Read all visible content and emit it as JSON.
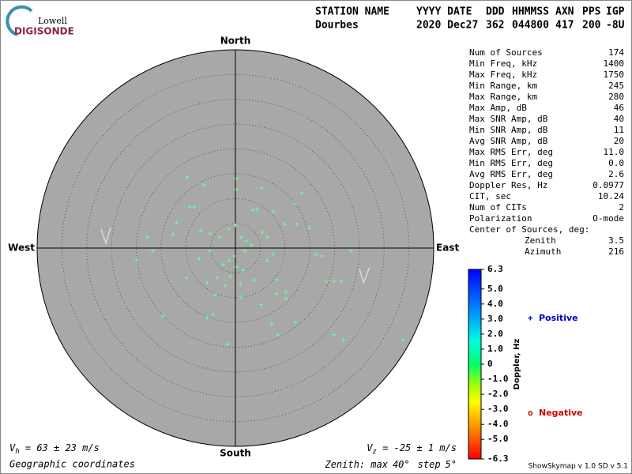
{
  "logo": {
    "top": "Lowell",
    "bottom": "DIGISONDE"
  },
  "header": {
    "labels": [
      "STATION NAME",
      "YYYY DATE",
      "DDD",
      "HHMMSS",
      "AXN",
      "PPS",
      "IGP"
    ],
    "values": [
      "Dourbes",
      "2020 Dec27",
      362,
      "044800",
      417,
      200,
      "-8U"
    ]
  },
  "compass": {
    "north": "North",
    "south": "South",
    "east": "East",
    "west": "West"
  },
  "skymap": {
    "color": "#66ff99",
    "east": [
      -9.7,
      -6.4,
      0.3,
      0.3,
      5.3,
      13.4,
      -8.3,
      -9.2,
      -11.9,
      -12.6,
      -17.8,
      -16.7,
      -20.0,
      3.5,
      4.3,
      7.6,
      11.9,
      9.9,
      12.4,
      14.9,
      -7.0,
      -5.1,
      -3.2,
      -1.3,
      0.0,
      1.1,
      2.2,
      3.2,
      1.9,
      -0.3,
      -1.3,
      -2.5,
      0.3,
      1.6,
      -1.0,
      -3.7,
      -5.7,
      -2.1,
      1.0,
      3.8,
      6.4,
      7.6,
      6.4,
      5.4,
      -5.1,
      -7.3,
      -9.9,
      -4.1,
      1.1,
      5.1,
      8.3,
      10.2,
      -4.5,
      -5.7,
      -14.6,
      7.3,
      12.1,
      8.6,
      -1.7,
      16.2,
      17.5,
      18.3,
      19.9,
      21.3,
      23.4,
      19.9,
      21.8,
      33.8,
      10.2,
      8.3
    ],
    "north": [
      14.3,
      12.7,
      14.0,
      11.8,
      12.1,
      11.1,
      8.3,
      8.3,
      5.1,
      2.7,
      2.2,
      -0.6,
      -2.5,
      7.6,
      7.8,
      7.3,
      8.9,
      4.8,
      4.8,
      4.1,
      3.5,
      2.9,
      2.2,
      3.8,
      4.6,
      2.2,
      1.4,
      0.6,
      -0.6,
      -1.6,
      -2.5,
      -3.3,
      -3.8,
      -4.5,
      -5.7,
      -6.0,
      -7.0,
      -7.6,
      -7.3,
      -6.5,
      -2.5,
      -1.3,
      2.2,
      3.2,
      -0.6,
      -2.2,
      -6.0,
      -9.5,
      -9.9,
      -11.4,
      -9.2,
      -10.2,
      -13.4,
      -14.0,
      -13.7,
      -15.3,
      -15.0,
      -17.5,
      -19.4,
      -1.3,
      -1.6,
      -6.7,
      -6.7,
      -6.7,
      -0.6,
      -17.5,
      -18.5,
      -18.5,
      -8.9,
      -6.4
    ]
  },
  "stats": [
    [
      "Num of Sources",
      174
    ],
    [
      "Min Freq, kHz",
      1400
    ],
    [
      "Max Freq, kHz",
      1750
    ],
    [
      "Min Range, km",
      245
    ],
    [
      "Max Range, km",
      280
    ],
    [
      "Max Amp, dB",
      46
    ],
    [
      "Max SNR Amp, dB",
      40
    ],
    [
      "Min SNR Amp, dB",
      11
    ],
    [
      "Avg SNR Amp, dB",
      20
    ],
    [
      "Max RMS Err, deg",
      "11.0"
    ],
    [
      "Min RMS Err, deg",
      "0.0"
    ],
    [
      "Avg RMS Err, deg",
      2.6
    ],
    [
      "Doppler Res, Hz",
      0.0977
    ],
    [
      "CIT, sec",
      10.24
    ],
    [
      "Num of CITs",
      2
    ],
    [
      "Polarization",
      "O-mode"
    ]
  ],
  "center": {
    "title": "Center of Sources, deg:",
    "rows": [
      [
        "Zenith",
        3.5
      ],
      [
        "Azimuth",
        216
      ]
    ]
  },
  "colorbar": {
    "label": "Doppler, Hz",
    "lim": [
      -6.3,
      6.3
    ],
    "ticks": [
      6.3,
      {
        "value": 5,
        "label": "5.0"
      },
      {
        "value": 4,
        "label": "4.0"
      },
      {
        "value": 3,
        "label": "3.0"
      },
      {
        "value": 2,
        "label": "2.0"
      },
      {
        "value": 1,
        "label": "1.0"
      },
      0,
      {
        "value": -1,
        "label": "-1.0"
      },
      {
        "value": -2,
        "label": "-2.0"
      },
      {
        "value": -3,
        "label": "-3.0"
      },
      {
        "value": -4,
        "label": "-4.0"
      },
      {
        "value": -5,
        "label": "-5.0"
      },
      -6.3
    ]
  },
  "legend": [
    {
      "symbol": "+",
      "label": "Positive",
      "color": "#0000c8"
    },
    {
      "symbol": "o",
      "label": "Negative",
      "color": "#d00000"
    }
  ],
  "velocity": {
    "h": {
      "symbol": "V",
      "sub": "h",
      "text": " = 63 ± 23 m/s"
    },
    "z": {
      "symbol": "V",
      "sub": "z",
      "text": " = -25 ± 1 m/s"
    }
  },
  "footer": {
    "coords": "Geographic coordinates",
    "zenith_label": "Zenith: max",
    "max": {
      "value": 40,
      "label": "40°"
    },
    "step_label": "step",
    "step": {
      "value": 5,
      "label": "5°"
    },
    "version": "ShowSkymap v 1.0  SD v 5.1"
  }
}
